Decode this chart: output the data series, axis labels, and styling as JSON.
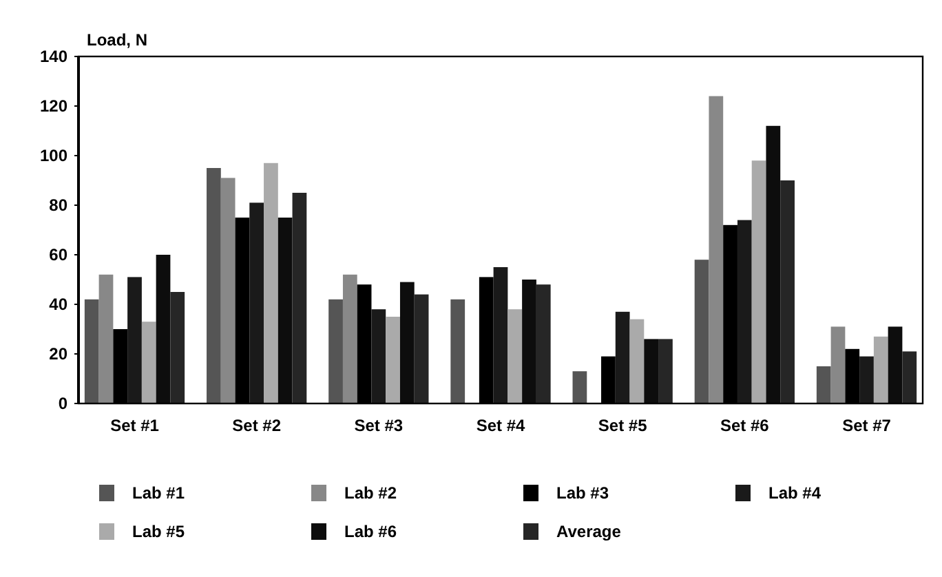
{
  "chart_data": {
    "type": "bar",
    "ylabel": "Load, N",
    "categories": [
      "Set #1",
      "Set #2",
      "Set #3",
      "Set #4",
      "Set #5",
      "Set #6",
      "Set #7"
    ],
    "series": [
      {
        "name": "Lab #1",
        "color": "#555555",
        "values": [
          42,
          95,
          42,
          42,
          13,
          58,
          15
        ]
      },
      {
        "name": "Lab #2",
        "color": "#888888",
        "values": [
          52,
          91,
          52,
          null,
          null,
          124,
          31
        ]
      },
      {
        "name": "Lab #3",
        "color": "#000000",
        "values": [
          30,
          75,
          48,
          51,
          19,
          72,
          22
        ]
      },
      {
        "name": "Lab #4",
        "color": "#1a1a1a",
        "values": [
          51,
          81,
          38,
          55,
          37,
          74,
          19
        ]
      },
      {
        "name": "Lab #5",
        "color": "#aaaaaa",
        "values": [
          33,
          97,
          35,
          38,
          34,
          98,
          27
        ]
      },
      {
        "name": "Lab #6",
        "color": "#0d0d0d",
        "values": [
          60,
          75,
          49,
          50,
          26,
          112,
          31
        ]
      },
      {
        "name": "Average",
        "color": "#262626",
        "values": [
          45,
          85,
          44,
          48,
          26,
          90,
          21
        ]
      }
    ],
    "ylim": [
      0,
      140
    ],
    "yticks": [
      0,
      20,
      40,
      60,
      80,
      100,
      120,
      140
    ],
    "grid": false,
    "legend": "bottom"
  }
}
